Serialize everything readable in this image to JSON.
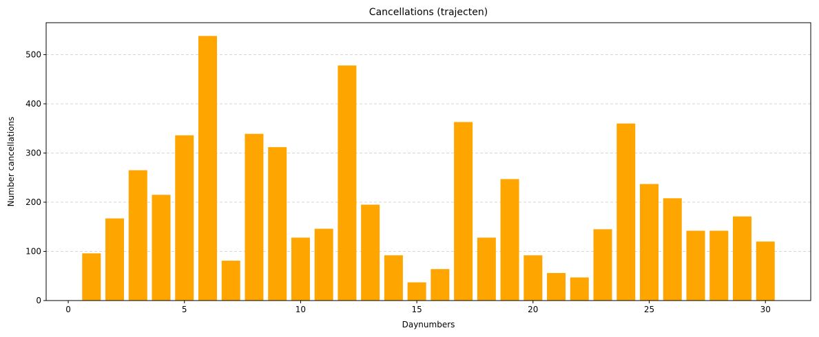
{
  "chart_data": {
    "type": "bar",
    "title": "Cancellations (trajecten)",
    "xlabel": "Daynumbers",
    "ylabel": "Number cancellations",
    "x": [
      1,
      2,
      3,
      4,
      5,
      6,
      7,
      8,
      9,
      10,
      11,
      12,
      13,
      14,
      15,
      16,
      17,
      18,
      19,
      20,
      21,
      22,
      23,
      24,
      25,
      26,
      27,
      28,
      29,
      30
    ],
    "values": [
      96,
      167,
      265,
      215,
      336,
      538,
      81,
      339,
      312,
      128,
      146,
      478,
      195,
      92,
      37,
      64,
      363,
      128,
      247,
      92,
      56,
      47,
      145,
      360,
      237,
      208,
      142,
      142,
      171,
      120
    ],
    "xlim": [
      -0.95,
      31.95
    ],
    "ylim": [
      0,
      565
    ],
    "xticks": [
      0,
      5,
      10,
      15,
      20,
      25,
      30
    ],
    "yticks": [
      0,
      100,
      200,
      300,
      400,
      500
    ],
    "bar_color": "#FFA500",
    "grid": "y-dashed"
  }
}
